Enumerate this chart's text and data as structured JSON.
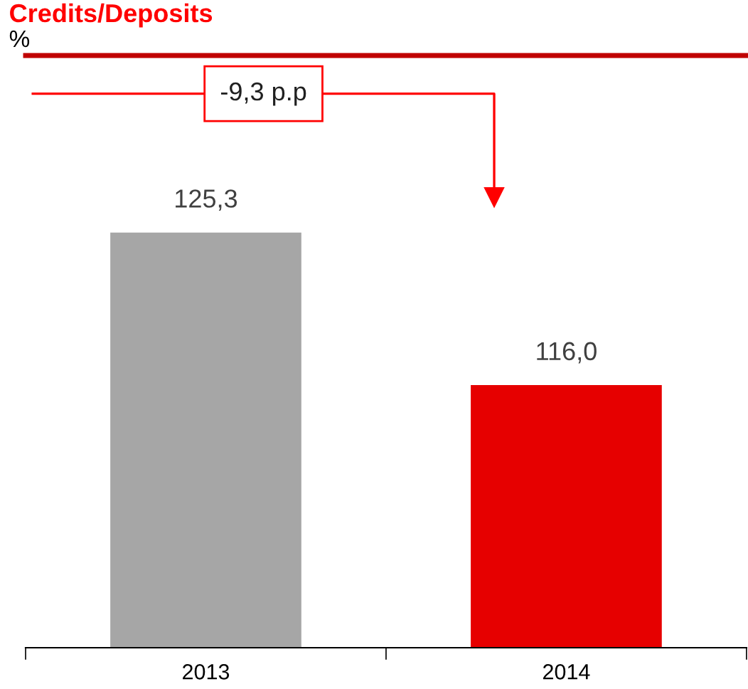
{
  "chart_data": {
    "type": "bar",
    "title": "Credits/Deposits",
    "subtitle": "%",
    "categories": [
      "2013",
      "2014"
    ],
    "values": [
      125.3,
      116.0
    ],
    "colors": [
      "#a6a6a6",
      "#e60000"
    ],
    "value_labels": [
      "125,3",
      "116,0"
    ],
    "ylim": [
      100,
      136
    ],
    "annotations": [
      "-9,3 p.p"
    ],
    "grid": false,
    "legend": false
  }
}
